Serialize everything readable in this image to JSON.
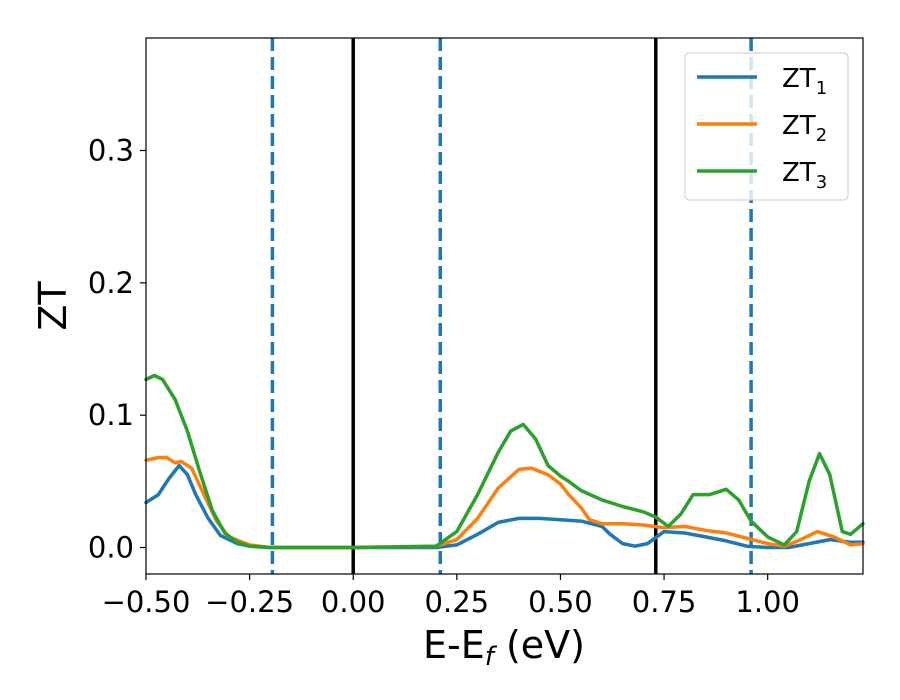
{
  "chart_data": {
    "type": "line",
    "title": "",
    "xlabel": "E-E",
    "xlabel_sub": "f",
    "xlabel_suffix": " (eV)",
    "ylabel": "ZT",
    "xlim": [
      -0.5,
      1.23
    ],
    "ylim": [
      -0.02,
      0.385
    ],
    "xticks": [
      -0.5,
      -0.25,
      0.0,
      0.25,
      0.5,
      0.75,
      1.0
    ],
    "xtick_labels": [
      "−0.50",
      "−0.25",
      "0.00",
      "0.25",
      "0.50",
      "0.75",
      "1.00"
    ],
    "yticks": [
      0.0,
      0.1,
      0.2,
      0.3
    ],
    "ytick_labels": [
      "0.0",
      "0.1",
      "0.2",
      "0.3"
    ],
    "grid": false,
    "legend_position": "top-right",
    "vlines": [
      {
        "x": -0.195,
        "style": "dashed",
        "color": "#1f77b4"
      },
      {
        "x": 0.0,
        "style": "solid",
        "color": "#000000"
      },
      {
        "x": 0.21,
        "style": "dashed",
        "color": "#1f77b4"
      },
      {
        "x": 0.73,
        "style": "solid",
        "color": "#000000"
      },
      {
        "x": 0.96,
        "style": "dashed",
        "color": "#1f77b4"
      }
    ],
    "series": [
      {
        "name": "ZT",
        "name_sub": "1",
        "color": "#1f77b4",
        "points": [
          [
            -0.5,
            0.034
          ],
          [
            -0.47,
            0.04
          ],
          [
            -0.445,
            0.052
          ],
          [
            -0.42,
            0.062
          ],
          [
            -0.4,
            0.055
          ],
          [
            -0.38,
            0.04
          ],
          [
            -0.35,
            0.022
          ],
          [
            -0.32,
            0.009
          ],
          [
            -0.28,
            0.003
          ],
          [
            -0.25,
            0.001
          ],
          [
            -0.2,
            0.0
          ],
          [
            0.0,
            0.0
          ],
          [
            0.2,
            0.0
          ],
          [
            0.25,
            0.002
          ],
          [
            0.3,
            0.01
          ],
          [
            0.35,
            0.019
          ],
          [
            0.4,
            0.022
          ],
          [
            0.45,
            0.022
          ],
          [
            0.5,
            0.021
          ],
          [
            0.55,
            0.02
          ],
          [
            0.6,
            0.016
          ],
          [
            0.62,
            0.01
          ],
          [
            0.65,
            0.003
          ],
          [
            0.68,
            0.001
          ],
          [
            0.71,
            0.003
          ],
          [
            0.75,
            0.012
          ],
          [
            0.8,
            0.011
          ],
          [
            0.85,
            0.008
          ],
          [
            0.9,
            0.005
          ],
          [
            0.95,
            0.001
          ],
          [
            1.0,
            0.0
          ],
          [
            1.05,
            0.0
          ],
          [
            1.1,
            0.003
          ],
          [
            1.15,
            0.006
          ],
          [
            1.2,
            0.004
          ],
          [
            1.23,
            0.004
          ]
        ]
      },
      {
        "name": "ZT",
        "name_sub": "2",
        "color": "#ff7f0e",
        "points": [
          [
            -0.5,
            0.066
          ],
          [
            -0.47,
            0.068
          ],
          [
            -0.45,
            0.068
          ],
          [
            -0.43,
            0.064
          ],
          [
            -0.415,
            0.065
          ],
          [
            -0.39,
            0.06
          ],
          [
            -0.36,
            0.04
          ],
          [
            -0.33,
            0.02
          ],
          [
            -0.3,
            0.008
          ],
          [
            -0.25,
            0.002
          ],
          [
            -0.2,
            0.0
          ],
          [
            0.0,
            0.0
          ],
          [
            0.2,
            0.001
          ],
          [
            0.25,
            0.006
          ],
          [
            0.3,
            0.022
          ],
          [
            0.35,
            0.045
          ],
          [
            0.4,
            0.059
          ],
          [
            0.43,
            0.06
          ],
          [
            0.47,
            0.055
          ],
          [
            0.5,
            0.048
          ],
          [
            0.52,
            0.04
          ],
          [
            0.55,
            0.03
          ],
          [
            0.57,
            0.021
          ],
          [
            0.6,
            0.018
          ],
          [
            0.65,
            0.018
          ],
          [
            0.7,
            0.017
          ],
          [
            0.75,
            0.015
          ],
          [
            0.8,
            0.016
          ],
          [
            0.85,
            0.013
          ],
          [
            0.9,
            0.011
          ],
          [
            0.95,
            0.007
          ],
          [
            1.0,
            0.003
          ],
          [
            1.04,
            0.001
          ],
          [
            1.08,
            0.006
          ],
          [
            1.12,
            0.012
          ],
          [
            1.16,
            0.008
          ],
          [
            1.2,
            0.002
          ],
          [
            1.23,
            0.003
          ]
        ]
      },
      {
        "name": "ZT",
        "name_sub": "3",
        "color": "#2ca02c",
        "points": [
          [
            -0.5,
            0.127
          ],
          [
            -0.48,
            0.13
          ],
          [
            -0.46,
            0.127
          ],
          [
            -0.43,
            0.112
          ],
          [
            -0.4,
            0.088
          ],
          [
            -0.37,
            0.057
          ],
          [
            -0.34,
            0.028
          ],
          [
            -0.31,
            0.011
          ],
          [
            -0.28,
            0.004
          ],
          [
            -0.25,
            0.001
          ],
          [
            -0.2,
            0.0
          ],
          [
            0.0,
            0.0
          ],
          [
            0.2,
            0.001
          ],
          [
            0.25,
            0.012
          ],
          [
            0.3,
            0.04
          ],
          [
            0.35,
            0.072
          ],
          [
            0.38,
            0.088
          ],
          [
            0.41,
            0.093
          ],
          [
            0.44,
            0.082
          ],
          [
            0.47,
            0.062
          ],
          [
            0.5,
            0.054
          ],
          [
            0.52,
            0.05
          ],
          [
            0.55,
            0.043
          ],
          [
            0.6,
            0.036
          ],
          [
            0.65,
            0.031
          ],
          [
            0.7,
            0.027
          ],
          [
            0.73,
            0.023
          ],
          [
            0.76,
            0.016
          ],
          [
            0.79,
            0.025
          ],
          [
            0.82,
            0.04
          ],
          [
            0.86,
            0.04
          ],
          [
            0.9,
            0.044
          ],
          [
            0.93,
            0.036
          ],
          [
            0.96,
            0.02
          ],
          [
            1.0,
            0.008
          ],
          [
            1.04,
            0.002
          ],
          [
            1.07,
            0.012
          ],
          [
            1.1,
            0.05
          ],
          [
            1.125,
            0.071
          ],
          [
            1.15,
            0.055
          ],
          [
            1.18,
            0.012
          ],
          [
            1.2,
            0.01
          ],
          [
            1.23,
            0.018
          ]
        ]
      }
    ]
  }
}
